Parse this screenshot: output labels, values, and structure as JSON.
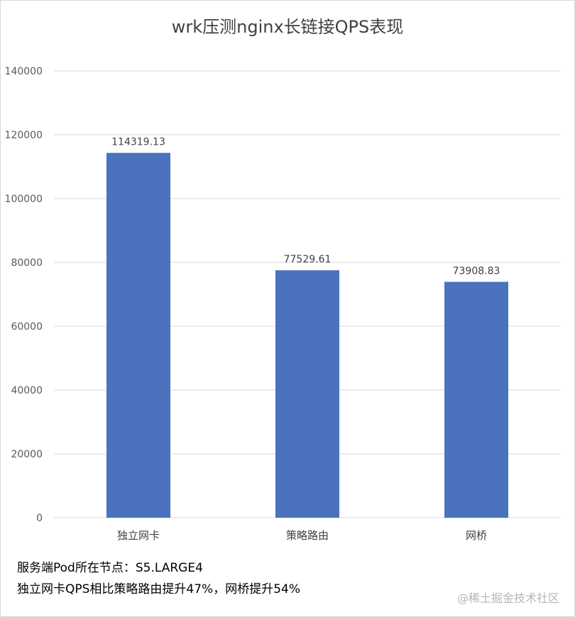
{
  "chart_data": {
    "type": "bar",
    "title": "wrk压测nginx长链接QPS表现",
    "categories": [
      "独立网卡",
      "策略路由",
      "网桥"
    ],
    "values": [
      114319.13,
      77529.61,
      73908.83
    ],
    "data_labels": [
      "114319.13",
      "77529.61",
      "73908.83"
    ],
    "ylim": [
      0,
      140000
    ],
    "yticks": [
      0,
      20000,
      40000,
      60000,
      80000,
      100000,
      120000,
      140000
    ],
    "xlabel": "",
    "ylabel": "",
    "grid": true,
    "legend": "none",
    "bar_color": "#4a72bd"
  },
  "notes": [
    "服务端Pod所在节点：S5.LARGE4",
    "独立网卡QPS相比策略路由提升47%，网桥提升54%"
  ],
  "watermark": "@稀土掘金技术社区"
}
